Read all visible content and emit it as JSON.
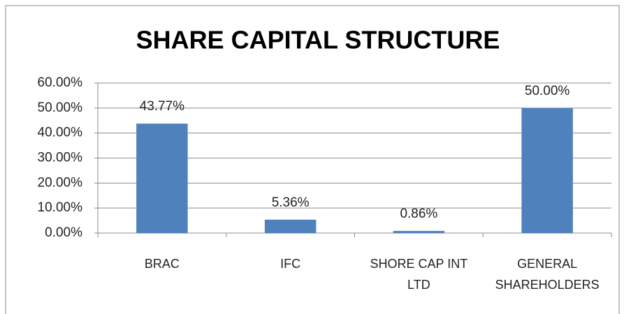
{
  "chart_data": {
    "type": "bar",
    "title": "SHARE CAPITAL STRUCTURE",
    "categories": [
      "BRAC",
      "IFC",
      "SHORE CAP INT LTD",
      "GENERAL SHAREHOLDERS"
    ],
    "values": [
      43.77,
      5.36,
      0.86,
      50.0
    ],
    "value_labels": [
      "43.77%",
      "5.36%",
      "0.86%",
      "50.00%"
    ],
    "color": "#4f81bd",
    "ylim": [
      0,
      60
    ],
    "yticks": [
      {
        "value": 0,
        "label": "0.00%"
      },
      {
        "value": 10,
        "label": "10.00%"
      },
      {
        "value": 20,
        "label": "20.00%"
      },
      {
        "value": 30,
        "label": "30.00%"
      },
      {
        "value": 40,
        "label": "40.00%"
      },
      {
        "value": 50,
        "label": "50.00%"
      },
      {
        "value": 60,
        "label": "60.00%"
      }
    ],
    "grid": true
  }
}
